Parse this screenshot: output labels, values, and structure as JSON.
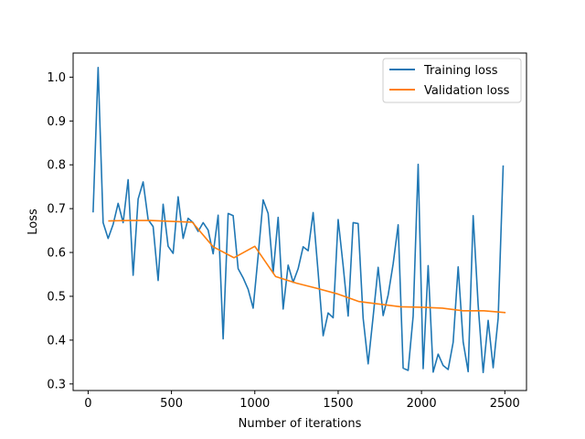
{
  "chart_data": {
    "type": "line",
    "title": "",
    "xlabel": "Number of iterations",
    "ylabel": "Loss",
    "xlim": [
      -90,
      2630
    ],
    "ylim": [
      0.285,
      1.055
    ],
    "xticks": [
      0,
      500,
      1000,
      1500,
      2000,
      2500
    ],
    "xtick_labels": [
      "0",
      "500",
      "1000",
      "1500",
      "2000",
      "2500"
    ],
    "yticks": [
      0.3,
      0.4,
      0.5,
      0.6,
      0.7,
      0.8,
      0.9,
      1.0
    ],
    "ytick_labels": [
      "0.3",
      "0.4",
      "0.5",
      "0.6",
      "0.7",
      "0.8",
      "0.9",
      "1.0"
    ],
    "grid": false,
    "legend_position": "top-right",
    "series": [
      {
        "name": "Training loss",
        "color": "#1f77b4",
        "x": [
          30,
          60,
          90,
          120,
          150,
          180,
          210,
          240,
          270,
          300,
          330,
          360,
          390,
          420,
          450,
          480,
          510,
          540,
          570,
          600,
          630,
          660,
          690,
          720,
          750,
          780,
          810,
          840,
          870,
          900,
          930,
          960,
          990,
          1020,
          1050,
          1080,
          1110,
          1140,
          1170,
          1200,
          1230,
          1260,
          1290,
          1320,
          1350,
          1380,
          1410,
          1440,
          1470,
          1500,
          1530,
          1560,
          1590,
          1620,
          1650,
          1680,
          1710,
          1740,
          1770,
          1800,
          1830,
          1860,
          1890,
          1920,
          1950,
          1980,
          2010,
          2040,
          2070,
          2100,
          2130,
          2160,
          2190,
          2220,
          2250,
          2280,
          2310,
          2340,
          2370,
          2400,
          2430,
          2460,
          2490
        ],
        "y": [
          0.693,
          1.022,
          0.668,
          0.632,
          0.664,
          0.712,
          0.668,
          0.766,
          0.548,
          0.722,
          0.761,
          0.675,
          0.659,
          0.536,
          0.71,
          0.614,
          0.598,
          0.727,
          0.632,
          0.678,
          0.668,
          0.648,
          0.668,
          0.651,
          0.597,
          0.685,
          0.403,
          0.689,
          0.684,
          0.563,
          0.542,
          0.516,
          0.473,
          0.592,
          0.72,
          0.689,
          0.553,
          0.68,
          0.471,
          0.571,
          0.532,
          0.563,
          0.613,
          0.604,
          0.691,
          0.554,
          0.41,
          0.462,
          0.451,
          0.675,
          0.57,
          0.455,
          0.668,
          0.666,
          0.45,
          0.346,
          0.454,
          0.566,
          0.456,
          0.503,
          0.574,
          0.663,
          0.336,
          0.331,
          0.455,
          0.801,
          0.335,
          0.57,
          0.327,
          0.368,
          0.342,
          0.333,
          0.395,
          0.567,
          0.396,
          0.328,
          0.684,
          0.48,
          0.326,
          0.445,
          0.337,
          0.45,
          0.797
        ]
      },
      {
        "name": "Validation loss",
        "color": "#ff7f0e",
        "x": [
          125,
          250,
          375,
          500,
          625,
          750,
          875,
          1000,
          1125,
          1250,
          1375,
          1500,
          1625,
          1750,
          1875,
          2000,
          2125,
          2250,
          2375,
          2500
        ],
        "y": [
          0.672,
          0.673,
          0.673,
          0.671,
          0.669,
          0.613,
          0.588,
          0.614,
          0.545,
          0.53,
          0.518,
          0.505,
          0.488,
          0.482,
          0.476,
          0.475,
          0.473,
          0.467,
          0.467,
          0.463
        ]
      }
    ]
  }
}
